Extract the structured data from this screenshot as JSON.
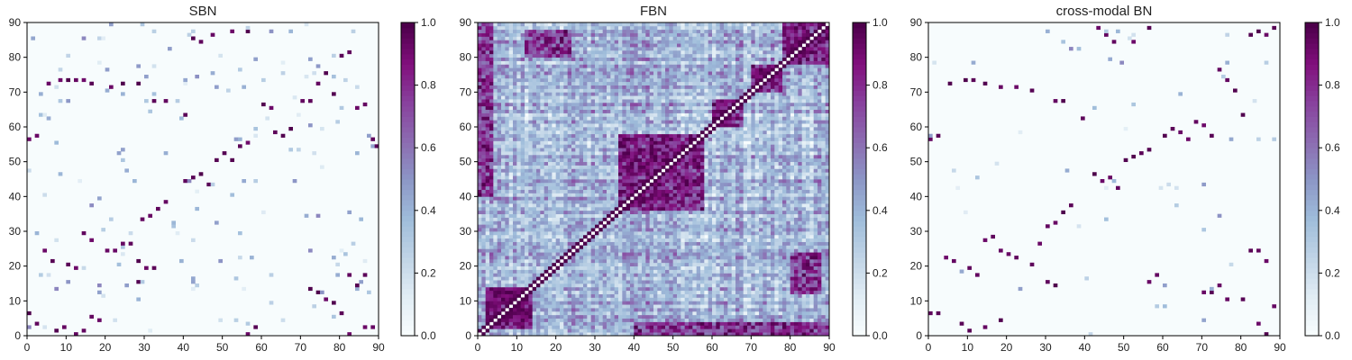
{
  "colormap": [
    "#f7fcfd",
    "#e0ecf4",
    "#bfd3e6",
    "#9ebcda",
    "#8c96c6",
    "#8c6bb1",
    "#88419d",
    "#810f7c",
    "#4d004b"
  ],
  "chart_data": [
    {
      "type": "heatmap",
      "title": "SBN",
      "xlim": [
        0,
        90
      ],
      "ylim": [
        0,
        90
      ],
      "x_ticks": [
        "0",
        "10",
        "20",
        "30",
        "40",
        "50",
        "60",
        "70",
        "80",
        "90"
      ],
      "y_ticks": [
        "0",
        "10",
        "20",
        "30",
        "40",
        "50",
        "60",
        "70",
        "80",
        "90"
      ],
      "colorbar": {
        "range": [
          0.0,
          1.0
        ],
        "ticks": [
          "0.0",
          "0.2",
          "0.4",
          "0.6",
          "0.8",
          "1.0"
        ]
      },
      "pattern": "sparse",
      "density": 0.02,
      "seed": 11,
      "strong_cells": [
        [
          5,
          72
        ],
        [
          8,
          73
        ],
        [
          10,
          73
        ],
        [
          12,
          73
        ],
        [
          14,
          73
        ],
        [
          16,
          72
        ],
        [
          21,
          71
        ],
        [
          24,
          72
        ],
        [
          28,
          72
        ],
        [
          32,
          67
        ],
        [
          35,
          67
        ],
        [
          40,
          63
        ],
        [
          42,
          85
        ],
        [
          44,
          84
        ],
        [
          47,
          86
        ],
        [
          52,
          87
        ],
        [
          56,
          87
        ],
        [
          60,
          66
        ],
        [
          62,
          65
        ],
        [
          63,
          58
        ],
        [
          65,
          57
        ],
        [
          67,
          59
        ],
        [
          70,
          67
        ],
        [
          72,
          67
        ],
        [
          74,
          72
        ],
        [
          76,
          75
        ],
        [
          78,
          69
        ],
        [
          80,
          80
        ],
        [
          82,
          81
        ],
        [
          84,
          65
        ],
        [
          86,
          66
        ],
        [
          88,
          56
        ],
        [
          89,
          54
        ],
        [
          0,
          56
        ],
        [
          2,
          57
        ],
        [
          40,
          44
        ],
        [
          42,
          45
        ],
        [
          44,
          46
        ],
        [
          46,
          43
        ],
        [
          48,
          50
        ],
        [
          50,
          52
        ],
        [
          52,
          50
        ],
        [
          54,
          54
        ],
        [
          56,
          55
        ],
        [
          35,
          38
        ],
        [
          33,
          36
        ],
        [
          31,
          34
        ],
        [
          29,
          33
        ],
        [
          20,
          24
        ],
        [
          22,
          24
        ],
        [
          24,
          26
        ],
        [
          26,
          26
        ],
        [
          28,
          21
        ],
        [
          14,
          29
        ],
        [
          16,
          27
        ],
        [
          10,
          20
        ],
        [
          12,
          19
        ],
        [
          6,
          21
        ],
        [
          4,
          24
        ],
        [
          0,
          6
        ],
        [
          2,
          3
        ],
        [
          7,
          1
        ],
        [
          9,
          2
        ],
        [
          12,
          0
        ],
        [
          14,
          1
        ],
        [
          16,
          5
        ],
        [
          18,
          4
        ],
        [
          28,
          15
        ],
        [
          30,
          19
        ],
        [
          32,
          19
        ],
        [
          56,
          0
        ],
        [
          58,
          2
        ],
        [
          72,
          13
        ],
        [
          74,
          12
        ],
        [
          76,
          10
        ],
        [
          78,
          9
        ],
        [
          80,
          6
        ],
        [
          82,
          0
        ],
        [
          86,
          2
        ],
        [
          88,
          2
        ],
        [
          86,
          17
        ],
        [
          84,
          14
        ],
        [
          82,
          17
        ]
      ]
    },
    {
      "type": "heatmap",
      "title": "FBN",
      "xlim": [
        0,
        90
      ],
      "ylim": [
        0,
        90
      ],
      "x_ticks": [
        "0",
        "10",
        "20",
        "30",
        "40",
        "50",
        "60",
        "70",
        "80",
        "90"
      ],
      "y_ticks": [
        "0",
        "10",
        "20",
        "30",
        "40",
        "50",
        "60",
        "70",
        "80",
        "90"
      ],
      "colorbar": {
        "range": [
          0.0,
          1.0
        ],
        "ticks": [
          "0.0",
          "0.2",
          "0.4",
          "0.6",
          "0.8",
          "1.0"
        ]
      },
      "pattern": "dense",
      "density": 1.0,
      "seed": 23,
      "strong_blocks": [
        [
          36,
          58,
          36,
          58
        ],
        [
          4,
          14,
          4,
          14
        ],
        [
          60,
          68,
          60,
          68
        ],
        [
          78,
          90,
          78,
          90
        ],
        [
          70,
          78,
          70,
          78
        ],
        [
          12,
          24,
          80,
          88
        ],
        [
          2,
          14,
          2,
          14
        ],
        [
          40,
          90,
          0,
          4
        ]
      ],
      "strong_cells": []
    },
    {
      "type": "heatmap",
      "title": "cross-modal BN",
      "xlim": [
        0,
        90
      ],
      "ylim": [
        0,
        90
      ],
      "x_ticks": [
        "0",
        "10",
        "20",
        "30",
        "40",
        "50",
        "60",
        "70",
        "80",
        "90"
      ],
      "y_ticks": [
        "0",
        "10",
        "20",
        "30",
        "40",
        "50",
        "60",
        "70",
        "80",
        "90"
      ],
      "colorbar": {
        "range": [
          0.0,
          1.0
        ],
        "ticks": [
          "0.0",
          "0.2",
          "0.4",
          "0.6",
          "0.8",
          "1.0"
        ]
      },
      "pattern": "sparse",
      "density": 0.008,
      "seed": 37,
      "strong_cells": [
        [
          5,
          72
        ],
        [
          9,
          73
        ],
        [
          11,
          73
        ],
        [
          14,
          72
        ],
        [
          18,
          71
        ],
        [
          22,
          71
        ],
        [
          26,
          70
        ],
        [
          32,
          67
        ],
        [
          34,
          67
        ],
        [
          39,
          62
        ],
        [
          43,
          88
        ],
        [
          45,
          86
        ],
        [
          47,
          84
        ],
        [
          52,
          84
        ],
        [
          56,
          88
        ],
        [
          60,
          57
        ],
        [
          62,
          59
        ],
        [
          64,
          58
        ],
        [
          66,
          56
        ],
        [
          68,
          61
        ],
        [
          70,
          60
        ],
        [
          72,
          57
        ],
        [
          74,
          76
        ],
        [
          76,
          73
        ],
        [
          78,
          70
        ],
        [
          80,
          63
        ],
        [
          82,
          86
        ],
        [
          84,
          87
        ],
        [
          86,
          86
        ],
        [
          88,
          88
        ],
        [
          0,
          56
        ],
        [
          2,
          57
        ],
        [
          42,
          46
        ],
        [
          44,
          44
        ],
        [
          46,
          45
        ],
        [
          48,
          42
        ],
        [
          50,
          50
        ],
        [
          52,
          51
        ],
        [
          54,
          52
        ],
        [
          56,
          53
        ],
        [
          36,
          37
        ],
        [
          34,
          35
        ],
        [
          32,
          32
        ],
        [
          30,
          31
        ],
        [
          18,
          24
        ],
        [
          20,
          23
        ],
        [
          22,
          22
        ],
        [
          26,
          20
        ],
        [
          28,
          26
        ],
        [
          14,
          27
        ],
        [
          16,
          28
        ],
        [
          10,
          19
        ],
        [
          12,
          17
        ],
        [
          6,
          21
        ],
        [
          4,
          22
        ],
        [
          0,
          6
        ],
        [
          2,
          6
        ],
        [
          8,
          3
        ],
        [
          10,
          1
        ],
        [
          14,
          2
        ],
        [
          18,
          4
        ],
        [
          30,
          15
        ],
        [
          32,
          14
        ],
        [
          56,
          15
        ],
        [
          58,
          17
        ],
        [
          70,
          12
        ],
        [
          72,
          12
        ],
        [
          74,
          14
        ],
        [
          76,
          10
        ],
        [
          80,
          10
        ],
        [
          84,
          3
        ],
        [
          88,
          8
        ],
        [
          86,
          0
        ],
        [
          82,
          24
        ],
        [
          84,
          24
        ],
        [
          86,
          21
        ]
      ]
    }
  ]
}
